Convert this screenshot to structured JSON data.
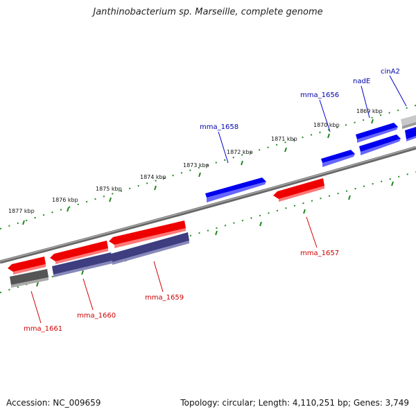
{
  "title": "Janthinobacterium sp. Marseille, complete genome",
  "footer": {
    "accession": "Accession: NC_009659",
    "summary": "Topology: circular; Length: 4,110,251 bp; Genes: 3,749"
  },
  "ticks": [
    "1869 kbp",
    "1870 kbp",
    "1871 kbp",
    "1872 kbp",
    "1873 kbp",
    "1874 kbp",
    "1875 kbp",
    "1876 kbp",
    "1877 kbp"
  ],
  "genes": [
    {
      "name": "cinA2",
      "strand": "forward",
      "color": "#0000ee"
    },
    {
      "name": "nadE",
      "strand": "forward",
      "color": "#0000ee"
    },
    {
      "name": "mma_1656",
      "strand": "forward",
      "color": "#0000ee"
    },
    {
      "name": "mma_1658",
      "strand": "forward",
      "color": "#0000ee"
    },
    {
      "name": "mma_1657",
      "strand": "reverse",
      "color": "#ee0000"
    },
    {
      "name": "mma_1659",
      "strand": "reverse",
      "color": "#ee0000"
    },
    {
      "name": "mma_1660",
      "strand": "reverse",
      "color": "#ee0000"
    },
    {
      "name": "mma_1661",
      "strand": "reverse",
      "color": "#ee0000"
    }
  ],
  "colors": {
    "forward_gene": "#0000ee",
    "reverse_gene": "#ee0000",
    "forward_label": "#0000aa",
    "reverse_label": "#cc0000",
    "tick": "#228822",
    "backbone": "#888888",
    "rna_track": "#55558a"
  }
}
